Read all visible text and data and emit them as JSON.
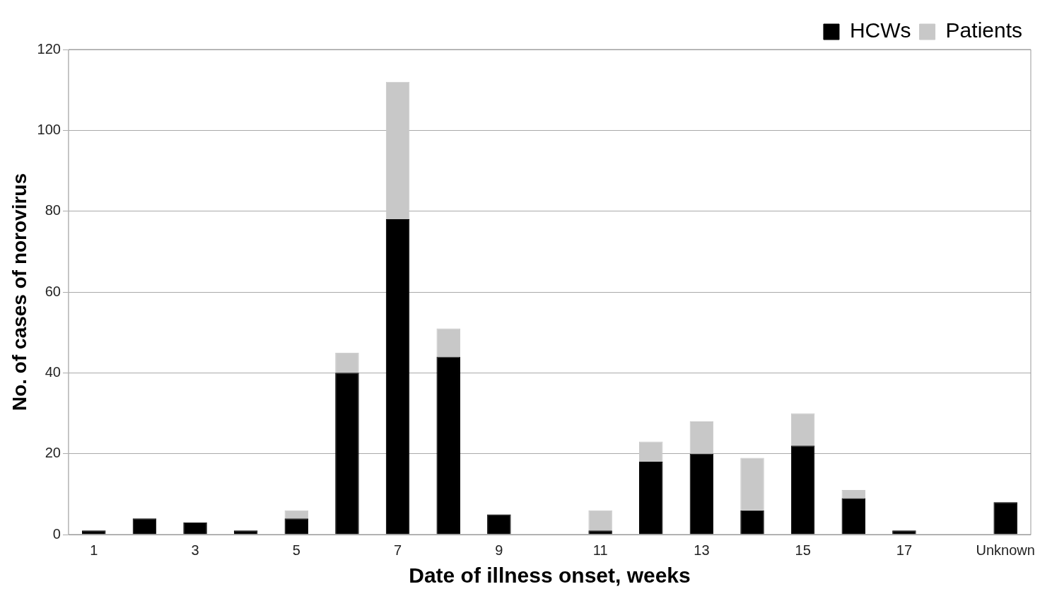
{
  "chart_data": {
    "type": "bar",
    "xlabel": "Date of illness onset, weeks",
    "ylabel": "No. of cases of norovirus",
    "categories": [
      "1",
      null,
      "3",
      null,
      "5",
      null,
      "7",
      null,
      "9",
      null,
      "11",
      null,
      "13",
      null,
      "15",
      null,
      "17",
      null,
      "Unknown"
    ],
    "series": [
      {
        "name": "HCWs",
        "color": "#000000",
        "values": [
          1,
          4,
          3,
          1,
          4,
          40,
          78,
          44,
          5,
          0,
          1,
          18,
          20,
          6,
          22,
          9,
          1,
          0,
          8
        ]
      },
      {
        "name": "Patients",
        "color": "#c8c8c8",
        "values": [
          0,
          0,
          0,
          0,
          2,
          5,
          34,
          7,
          0,
          0,
          5,
          5,
          8,
          13,
          8,
          2,
          0,
          0,
          0
        ]
      }
    ],
    "stacked": true,
    "ylim": [
      0,
      120
    ],
    "yticks": [
      0,
      20,
      40,
      60,
      80,
      100,
      120
    ],
    "grid": "y",
    "legend": "top right"
  }
}
